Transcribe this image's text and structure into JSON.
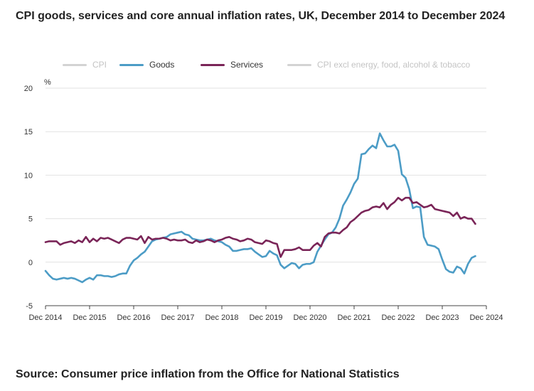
{
  "title": "CPI goods, services and core annual inflation rates, UK, December 2014 to December 2024",
  "source": "Source: Consumer price inflation from the Office for National Statistics",
  "colors": {
    "goods": "#4c9cc6",
    "services": "#7a2558",
    "faded": "#d3d3d3",
    "grid": "#e2e2e2",
    "axis": "#444444"
  },
  "chart_data": {
    "type": "line",
    "title": "CPI goods, services and core annual inflation rates, UK, December 2014 to December 2024",
    "xlabel": "",
    "ylabel": "%",
    "ylim": [
      -5,
      20
    ],
    "yticks": [
      -5,
      0,
      5,
      10,
      15,
      20
    ],
    "xlim": [
      0,
      120
    ],
    "xticks": [
      {
        "pos": 0,
        "label": "Dec 2014"
      },
      {
        "pos": 12,
        "label": "Dec 2015"
      },
      {
        "pos": 24,
        "label": "Dec 2016"
      },
      {
        "pos": 36,
        "label": "Dec 2017"
      },
      {
        "pos": 48,
        "label": "Dec 2018"
      },
      {
        "pos": 60,
        "label": "Dec 2019"
      },
      {
        "pos": 72,
        "label": "Dec 2020"
      },
      {
        "pos": 84,
        "label": "Dec 2021"
      },
      {
        "pos": 96,
        "label": "Dec 2022"
      },
      {
        "pos": 108,
        "label": "Dec 2023"
      },
      {
        "pos": 120,
        "label": "Dec 2024"
      }
    ],
    "grid": true,
    "legend_position": "top",
    "x_note": "x values are months since December 2014",
    "series": [
      {
        "name": "CPI",
        "hidden": true,
        "values": []
      },
      {
        "name": "Goods",
        "hidden": false,
        "color": "#4c9cc6",
        "values": [
          -1.0,
          -1.5,
          -1.9,
          -2.0,
          -1.9,
          -1.8,
          -1.9,
          -1.8,
          -1.9,
          -2.1,
          -2.3,
          -2.0,
          -1.8,
          -2.0,
          -1.5,
          -1.5,
          -1.6,
          -1.6,
          -1.7,
          -1.6,
          -1.4,
          -1.3,
          -1.3,
          -0.4,
          0.2,
          0.5,
          0.9,
          1.2,
          1.8,
          2.4,
          2.6,
          2.7,
          2.8,
          2.9,
          3.2,
          3.3,
          3.4,
          3.5,
          3.2,
          3.1,
          2.7,
          2.6,
          2.5,
          2.5,
          2.6,
          2.7,
          2.5,
          2.4,
          2.3,
          2.0,
          1.8,
          1.3,
          1.3,
          1.4,
          1.5,
          1.5,
          1.6,
          1.2,
          0.9,
          0.6,
          0.7,
          1.3,
          1.0,
          0.8,
          -0.3,
          -0.7,
          -0.4,
          -0.1,
          -0.2,
          -0.7,
          -0.3,
          -0.2,
          -0.2,
          0.0,
          1.2,
          1.9,
          2.6,
          3.2,
          3.4,
          4.0,
          5.0,
          6.5,
          7.2,
          8.0,
          9.0,
          9.6,
          12.4,
          12.5,
          13.0,
          13.4,
          13.1,
          14.8,
          14.0,
          13.3,
          13.3,
          13.5,
          12.8,
          10.1,
          9.7,
          8.4,
          6.2,
          6.4,
          6.3,
          2.9,
          2.0,
          1.9,
          1.8,
          1.5,
          0.3,
          -0.8,
          -1.1,
          -1.2,
          -0.5,
          -0.7,
          -1.3,
          -0.2,
          0.5,
          0.7
        ]
      },
      {
        "name": "Services",
        "hidden": false,
        "color": "#7a2558",
        "values": [
          2.3,
          2.4,
          2.4,
          2.4,
          2.0,
          2.2,
          2.3,
          2.4,
          2.2,
          2.5,
          2.3,
          2.9,
          2.3,
          2.7,
          2.4,
          2.8,
          2.7,
          2.8,
          2.6,
          2.4,
          2.2,
          2.6,
          2.8,
          2.8,
          2.7,
          2.6,
          3.0,
          2.2,
          2.9,
          2.6,
          2.7,
          2.7,
          2.8,
          2.7,
          2.5,
          2.6,
          2.5,
          2.5,
          2.6,
          2.3,
          2.2,
          2.5,
          2.3,
          2.4,
          2.6,
          2.5,
          2.3,
          2.5,
          2.6,
          2.8,
          2.9,
          2.7,
          2.6,
          2.4,
          2.5,
          2.7,
          2.6,
          2.3,
          2.2,
          2.1,
          2.5,
          2.4,
          2.2,
          2.1,
          0.6,
          1.4,
          1.4,
          1.4,
          1.5,
          1.7,
          1.4,
          1.4,
          1.4,
          1.9,
          2.2,
          1.8,
          2.9,
          3.3,
          3.4,
          3.4,
          3.3,
          3.7,
          4.0,
          4.6,
          4.9,
          5.3,
          5.7,
          5.9,
          6.0,
          6.3,
          6.4,
          6.3,
          6.8,
          6.1,
          6.6,
          6.9,
          7.4,
          7.1,
          7.4,
          7.4,
          6.8,
          6.9,
          6.6,
          6.3,
          6.4,
          6.6,
          6.1,
          6.0,
          5.9,
          5.8,
          5.7,
          5.3,
          5.7,
          5.0,
          5.2,
          5.0,
          5.0,
          4.4
        ]
      },
      {
        "name": "CPI excl energy, food, alcohol & tobacco",
        "hidden": true,
        "values": []
      }
    ]
  }
}
